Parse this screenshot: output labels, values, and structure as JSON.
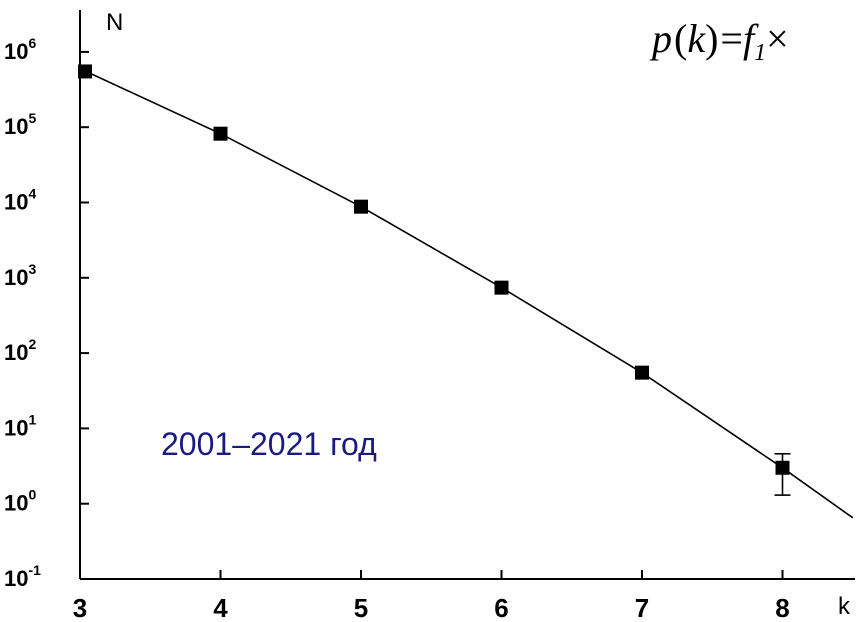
{
  "chart_data": {
    "type": "scatter",
    "xlabel": "k",
    "ylabel": "N",
    "yscale": "log",
    "xlim": [
      3,
      8.5
    ],
    "ylim": [
      0.1,
      1000000
    ],
    "x_ticks": [
      "3",
      "4",
      "5",
      "6",
      "7",
      "8"
    ],
    "y_ticks": [
      {
        "base": "10",
        "exp": "6"
      },
      {
        "base": "10",
        "exp": "5"
      },
      {
        "base": "10",
        "exp": "4"
      },
      {
        "base": "10",
        "exp": "3"
      },
      {
        "base": "10",
        "exp": "2"
      },
      {
        "base": "10",
        "exp": "1"
      },
      {
        "base": "10",
        "exp": "0"
      },
      {
        "base": "10",
        "exp": "-1"
      }
    ],
    "points": [
      {
        "k": 3,
        "N": 550000
      },
      {
        "k": 4,
        "N": 82000
      },
      {
        "k": 5,
        "N": 8800
      },
      {
        "k": 6,
        "N": 740
      },
      {
        "k": 7,
        "N": 55
      },
      {
        "k": 8,
        "N": 3,
        "err_low": 1.3,
        "err_high": 4.6
      }
    ],
    "fit_line": [
      {
        "k": 3,
        "N": 600000
      },
      {
        "k": 4,
        "N": 82000
      },
      {
        "k": 5,
        "N": 8800
      },
      {
        "k": 6,
        "N": 740
      },
      {
        "k": 7,
        "N": 55
      },
      {
        "k": 8,
        "N": 3
      },
      {
        "k": 8.5,
        "N": 0.65
      }
    ],
    "annotation": "2001–2021 год",
    "formula": {
      "p": "p",
      "k": "k",
      "lparen": "(",
      "rparen": ")",
      "eq": "=",
      "f": "f",
      "sub": "1",
      "times": "×"
    }
  },
  "colors": {
    "axis": "#000000",
    "marker": "#000000",
    "annotation": "#1a1a80"
  }
}
